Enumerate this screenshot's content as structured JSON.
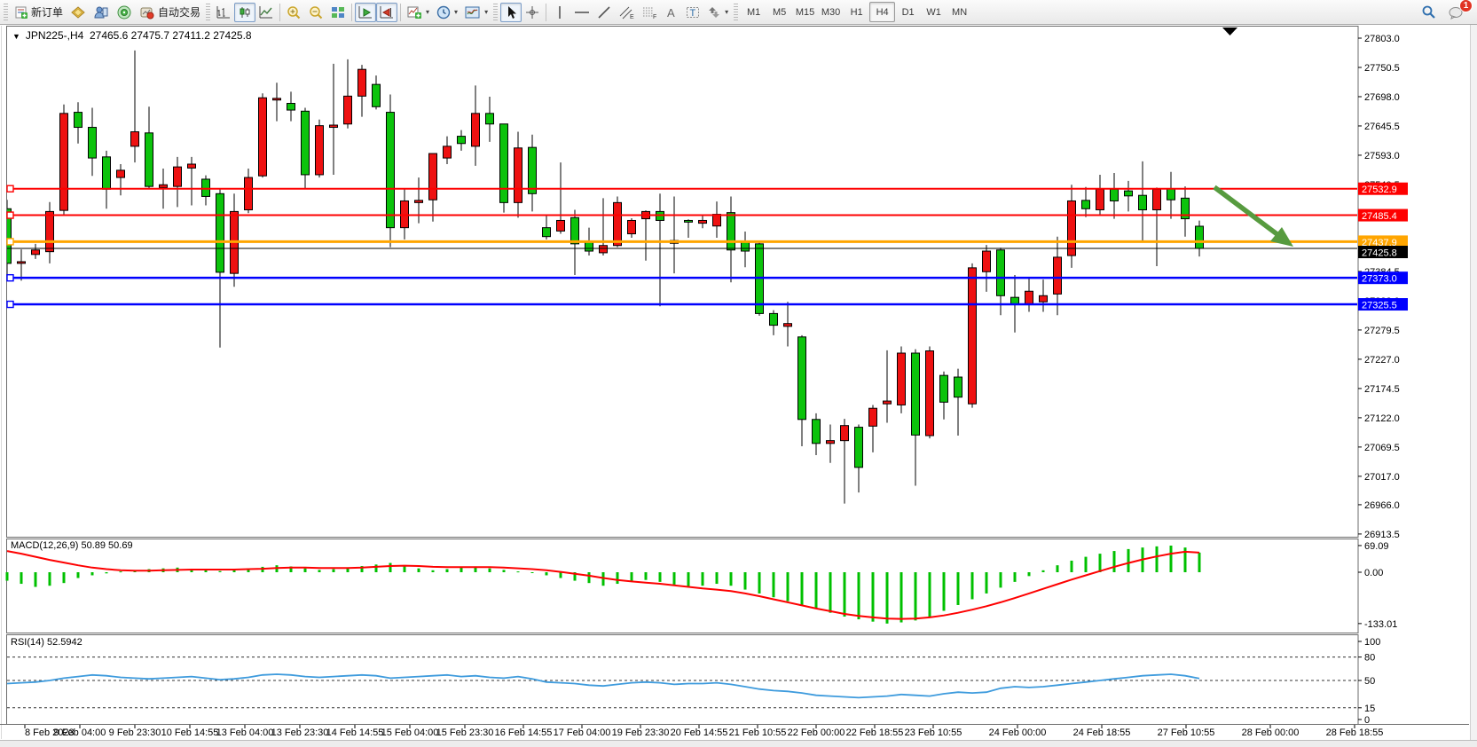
{
  "toolbar": {
    "new_order_label": "新订单",
    "auto_trading_label": "自动交易",
    "timeframes": [
      "M1",
      "M5",
      "M15",
      "M30",
      "H1",
      "H4",
      "D1",
      "W1",
      "MN"
    ],
    "active_timeframe": "H4",
    "notification_count": "1"
  },
  "chart_data": {
    "type": "candlestick+indicators",
    "title_symbol": "JPN225-,H4",
    "title_ohlc": "27465.6 27475.7 27411.2 27425.8",
    "last_ohlc": {
      "open": 27465.6,
      "high": 27475.7,
      "low": 27411.2,
      "close": 27425.8
    },
    "price_axis_ticks": [
      "27803.0",
      "27750.5",
      "27698.0",
      "27645.5",
      "27593.0",
      "27540.5",
      "27488.0",
      "27435.5",
      "27384.5",
      "27332.0",
      "27279.5",
      "27227.0",
      "27174.5",
      "27122.0",
      "27069.5",
      "27017.0",
      "26966.0",
      "26913.5"
    ],
    "horizontal_lines": [
      {
        "price": 27532.9,
        "label": "27532.9",
        "color": "#fe0000",
        "width": 2
      },
      {
        "price": 27485.4,
        "label": "27485.4",
        "color": "#fe0000",
        "width": 2
      },
      {
        "price": 27437.9,
        "label": "27437.9",
        "color": "#ffa500",
        "width": 3
      },
      {
        "price": 27373.0,
        "label": "27373.0",
        "color": "#0000fe",
        "width": 2.5
      },
      {
        "price": 27325.5,
        "label": "27325.5",
        "color": "#0000fe",
        "width": 2.5
      }
    ],
    "current_price": {
      "value": 27425.8,
      "label": "27425.8",
      "box_color": "#000000"
    },
    "trend_arrow": {
      "direction": "down-right",
      "color": "#579b3f"
    },
    "candles": [
      [
        27497,
        27513,
        27375,
        27399
      ],
      [
        27399,
        27424,
        27368,
        27402
      ],
      [
        27415,
        27434,
        27407,
        27423
      ],
      [
        27420,
        27509,
        27399,
        27492
      ],
      [
        27494,
        27684,
        27487,
        27668
      ],
      [
        27670,
        27688,
        27614,
        27643
      ],
      [
        27643,
        27678,
        27556,
        27588
      ],
      [
        27590,
        27601,
        27497,
        27532
      ],
      [
        27553,
        27577,
        27521,
        27566
      ],
      [
        27609,
        27781,
        27580,
        27635
      ],
      [
        27633,
        27680,
        27534,
        27537
      ],
      [
        27535,
        27569,
        27497,
        27540
      ],
      [
        27537,
        27590,
        27500,
        27572
      ],
      [
        27570,
        27590,
        27503,
        27577
      ],
      [
        27550,
        27557,
        27503,
        27519
      ],
      [
        27524,
        27534,
        27248,
        27383
      ],
      [
        27381,
        27524,
        27357,
        27492
      ],
      [
        27495,
        27569,
        27489,
        27553
      ],
      [
        27556,
        27704,
        27553,
        27696
      ],
      [
        27692,
        27723,
        27654,
        27695
      ],
      [
        27686,
        27707,
        27654,
        27674
      ],
      [
        27672,
        27678,
        27534,
        27558
      ],
      [
        27558,
        27657,
        27553,
        27646
      ],
      [
        27643,
        27757,
        27558,
        27647
      ],
      [
        27649,
        27765,
        27641,
        27699
      ],
      [
        27699,
        27755,
        27662,
        27747
      ],
      [
        27720,
        27736,
        27675,
        27680
      ],
      [
        27670,
        27702,
        27428,
        27463
      ],
      [
        27463,
        27534,
        27442,
        27511
      ],
      [
        27508,
        27553,
        27471,
        27512
      ],
      [
        27513,
        27596,
        27474,
        27596
      ],
      [
        27588,
        27627,
        27577,
        27609
      ],
      [
        27627,
        27638,
        27601,
        27614
      ],
      [
        27609,
        27718,
        27574,
        27668
      ],
      [
        27668,
        27698,
        27617,
        27649
      ],
      [
        27649,
        27649,
        27490,
        27508
      ],
      [
        27508,
        27635,
        27481,
        27606
      ],
      [
        27607,
        27630,
        27492,
        27524
      ],
      [
        27463,
        27487,
        27442,
        27447
      ],
      [
        27457,
        27580,
        27452,
        27476
      ],
      [
        27481,
        27495,
        27378,
        27434
      ],
      [
        27437,
        27463,
        27413,
        27421
      ],
      [
        27418,
        27516,
        27413,
        27431
      ],
      [
        27431,
        27519,
        27428,
        27508
      ],
      [
        27452,
        27480,
        27445,
        27476
      ],
      [
        27479,
        27494,
        27404,
        27492
      ],
      [
        27492,
        27524,
        27322,
        27476
      ],
      [
        27435,
        27519,
        27381,
        27440
      ],
      [
        27476,
        27478,
        27445,
        27473
      ],
      [
        27471,
        27485,
        27462,
        27476
      ],
      [
        27466,
        27510,
        27445,
        27487
      ],
      [
        27490,
        27519,
        27365,
        27423
      ],
      [
        27437,
        27456,
        27392,
        27421
      ],
      [
        27434,
        27437,
        27305,
        27309
      ],
      [
        27309,
        27315,
        27270,
        27288
      ],
      [
        27286,
        27330,
        27250,
        27291
      ],
      [
        27267,
        27270,
        27071,
        27119
      ],
      [
        27119,
        27130,
        27055,
        27076
      ],
      [
        27076,
        27110,
        27041,
        27081
      ],
      [
        27081,
        27120,
        26968,
        27108
      ],
      [
        27105,
        27110,
        26988,
        27033
      ],
      [
        27107,
        27145,
        27060,
        27139
      ],
      [
        27147,
        27243,
        27113,
        27152
      ],
      [
        27145,
        27250,
        27130,
        27238
      ],
      [
        27238,
        27245,
        27000,
        27091
      ],
      [
        27090,
        27250,
        27085,
        27242
      ],
      [
        27198,
        27205,
        27119,
        27150
      ],
      [
        27195,
        27210,
        27090,
        27159
      ],
      [
        27147,
        27399,
        27140,
        27391
      ],
      [
        27384,
        27432,
        27348,
        27421
      ],
      [
        27423,
        27427,
        27306,
        27341
      ],
      [
        27338,
        27378,
        27275,
        27325
      ],
      [
        27325,
        27373,
        27312,
        27349
      ],
      [
        27330,
        27370,
        27312,
        27341
      ],
      [
        27344,
        27447,
        27306,
        27410
      ],
      [
        27413,
        27540,
        27391,
        27511
      ],
      [
        27512,
        27536,
        27482,
        27497
      ],
      [
        27495,
        27558,
        27487,
        27532
      ],
      [
        27532,
        27561,
        27479,
        27511
      ],
      [
        27529,
        27547,
        27492,
        27520
      ],
      [
        27521,
        27582,
        27437,
        27495
      ],
      [
        27495,
        27535,
        27394,
        27532
      ],
      [
        27533,
        27563,
        27479,
        27513
      ],
      [
        27516,
        27537,
        27447,
        27479
      ],
      [
        27465.6,
        27475.7,
        27411.2,
        27425.8
      ]
    ],
    "macd": {
      "label": "MACD(12,26,9) 50.89 50.69",
      "axis": [
        "69.09",
        "0.00",
        "-133.01"
      ],
      "histogram": [
        -22,
        -30,
        -38,
        -35,
        -28,
        -15,
        -8,
        -3,
        2,
        5,
        8,
        10,
        12,
        8,
        5,
        3,
        6,
        10,
        14,
        18,
        15,
        10,
        6,
        8,
        12,
        16,
        20,
        24,
        18,
        10,
        5,
        8,
        12,
        15,
        10,
        6,
        2,
        -2,
        -8,
        -15,
        -22,
        -28,
        -35,
        -30,
        -25,
        -20,
        -25,
        -32,
        -38,
        -35,
        -30,
        -35,
        -45,
        -55,
        -65,
        -75,
        -85,
        -95,
        -105,
        -115,
        -122,
        -128,
        -133,
        -130,
        -125,
        -115,
        -100,
        -85,
        -70,
        -55,
        -40,
        -25,
        -10,
        5,
        18,
        30,
        40,
        48,
        55,
        60,
        64,
        67,
        69,
        64,
        50.89
      ],
      "signal": [
        55,
        48,
        40,
        32,
        25,
        18,
        12,
        8,
        5,
        4,
        4,
        5,
        6,
        7,
        7,
        7,
        7,
        8,
        9,
        11,
        12,
        12,
        11,
        11,
        11,
        12,
        14,
        16,
        17,
        16,
        14,
        13,
        13,
        13,
        13,
        12,
        10,
        8,
        5,
        1,
        -4,
        -9,
        -15,
        -20,
        -24,
        -27,
        -30,
        -34,
        -38,
        -42,
        -45,
        -49,
        -55,
        -62,
        -70,
        -78,
        -86,
        -94,
        -101,
        -108,
        -113,
        -117,
        -120,
        -121,
        -120,
        -117,
        -112,
        -105,
        -97,
        -88,
        -78,
        -67,
        -55,
        -43,
        -31,
        -19,
        -8,
        3,
        14,
        24,
        33,
        41,
        48,
        53,
        50.69
      ]
    },
    "rsi": {
      "label": "RSI(14) 52.5942",
      "axis": [
        "100",
        "80",
        "50",
        "15",
        "0"
      ],
      "levels": [
        80,
        50,
        15
      ],
      "values": [
        46,
        47,
        48,
        50,
        53,
        55,
        57,
        56,
        54,
        53,
        52,
        53,
        54,
        55,
        53,
        51,
        52,
        54,
        57,
        58,
        57,
        55,
        54,
        55,
        56,
        57,
        56,
        53,
        54,
        55,
        56,
        57,
        55,
        56,
        54,
        53,
        55,
        52,
        48,
        47,
        46,
        44,
        43,
        45,
        47,
        48,
        47,
        45,
        46,
        46,
        47,
        45,
        42,
        39,
        37,
        36,
        34,
        31,
        30,
        29,
        28,
        29,
        30,
        32,
        31,
        30,
        33,
        35,
        34,
        35,
        40,
        42,
        41,
        42,
        44,
        46,
        48,
        50,
        52,
        54,
        56,
        57,
        58,
        56,
        52.59
      ]
    },
    "time_axis": [
      "8 Feb 2023",
      "9 Feb 04:00",
      "9 Feb 23:30",
      "10 Feb 14:55",
      "13 Feb 04:00",
      "13 Feb 23:30",
      "14 Feb 14:55",
      "15 Feb 04:00",
      "15 Feb 23:30",
      "16 Feb 14:55",
      "17 Feb 04:00",
      "19 Feb 23:30",
      "20 Feb 14:55",
      "21 Feb 10:55",
      "22 Feb 00:00",
      "22 Feb 18:55",
      "23 Feb 10:55",
      "24 Feb 00:00",
      "24 Feb 18:55",
      "27 Feb 10:55",
      "28 Feb 00:00",
      "28 Feb 18:55"
    ],
    "colors": {
      "up_candle": "#ee1111",
      "down_candle": "#0cc30c",
      "candle_border": "#000000",
      "macd_histogram": "#00c000",
      "macd_signal": "#fe0000",
      "rsi_line": "#3e9bdd",
      "arrow": "#579b3f",
      "level_red": "#fe0000",
      "level_orange": "#ffa500",
      "level_blue": "#0000fe"
    }
  }
}
